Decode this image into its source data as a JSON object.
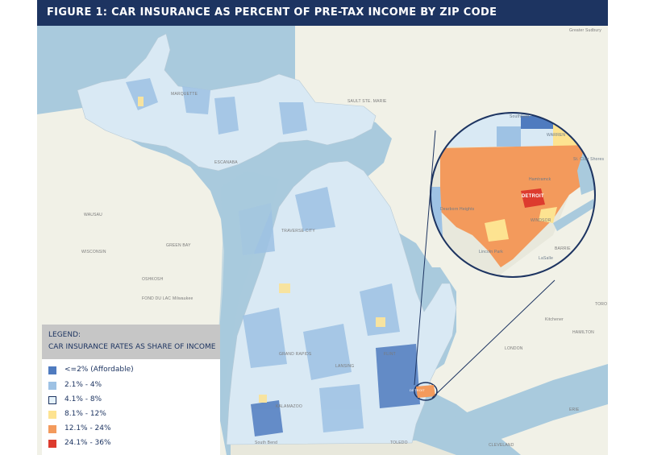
{
  "title": "FIGURE 1: CAR INSURANCE AS PERCENT OF PRE-TAX INCOME BY ZIP CODE",
  "legend": {
    "title": "LEGEND:",
    "subtitle": "CAR INSURANCE RATES AS SHARE OF INCOME",
    "items": [
      {
        "label": "<=2% (Affordable)",
        "color": "#4f7bbf"
      },
      {
        "label": "2.1% - 4%",
        "color": "#9ec2e4"
      },
      {
        "label": "4.1% - 8%",
        "color": "#e6f3fb"
      },
      {
        "label": "8.1% - 12%",
        "color": "#fde391"
      },
      {
        "label": "12.1% - 24%",
        "color": "#f39a5c"
      },
      {
        "label": "24.1% - 36%",
        "color": "#dd3b2e"
      }
    ]
  },
  "places": {
    "marquette": "MARQUETTE",
    "sault": "SAULT STE. MARIE",
    "escanaba": "ESCANABA",
    "wausau": "WAUSAU",
    "wisconsin": "WISCONSIN",
    "green_bay": "GREEN BAY",
    "oshkosh": "OSHKOSH",
    "fond_du_lac": "FOND DU LAC",
    "milwaukee": "Milwaukee",
    "traverse": "TRAVERSE CITY",
    "flint": "FLINT",
    "lansing": "LANSING",
    "grand_rapids": "GRAND RAPIDS",
    "kalamazoo": "KALAMAZOO",
    "detroit": "DETROIT",
    "south_bend": "South Bend",
    "toledo": "TOLEDO",
    "cleveland": "CLEVELAND",
    "windsor": "WINDSOR",
    "toronto": "TORO",
    "hamilton": "HAMILTON",
    "kitchener": "Kitchener",
    "london": "LONDON",
    "barrie": "BARRIE",
    "sudbury": "Greater Sudbury",
    "erie": "ERIE",
    "warren": "WARREN",
    "southfield": "Southfield",
    "dearborn": "Dearborn Heights",
    "lasalle": "LaSalle",
    "st_clair": "St. Clair Shores",
    "hamtramck": "Hamtramck",
    "lincoln_park": "Lincoln Park"
  },
  "colors": {
    "water": "#a9cadd",
    "land_canada": "#f1f1e7",
    "land_us": "#e8e8dc",
    "title_bg": "#1d3461",
    "inset_border": "#1d3461"
  }
}
